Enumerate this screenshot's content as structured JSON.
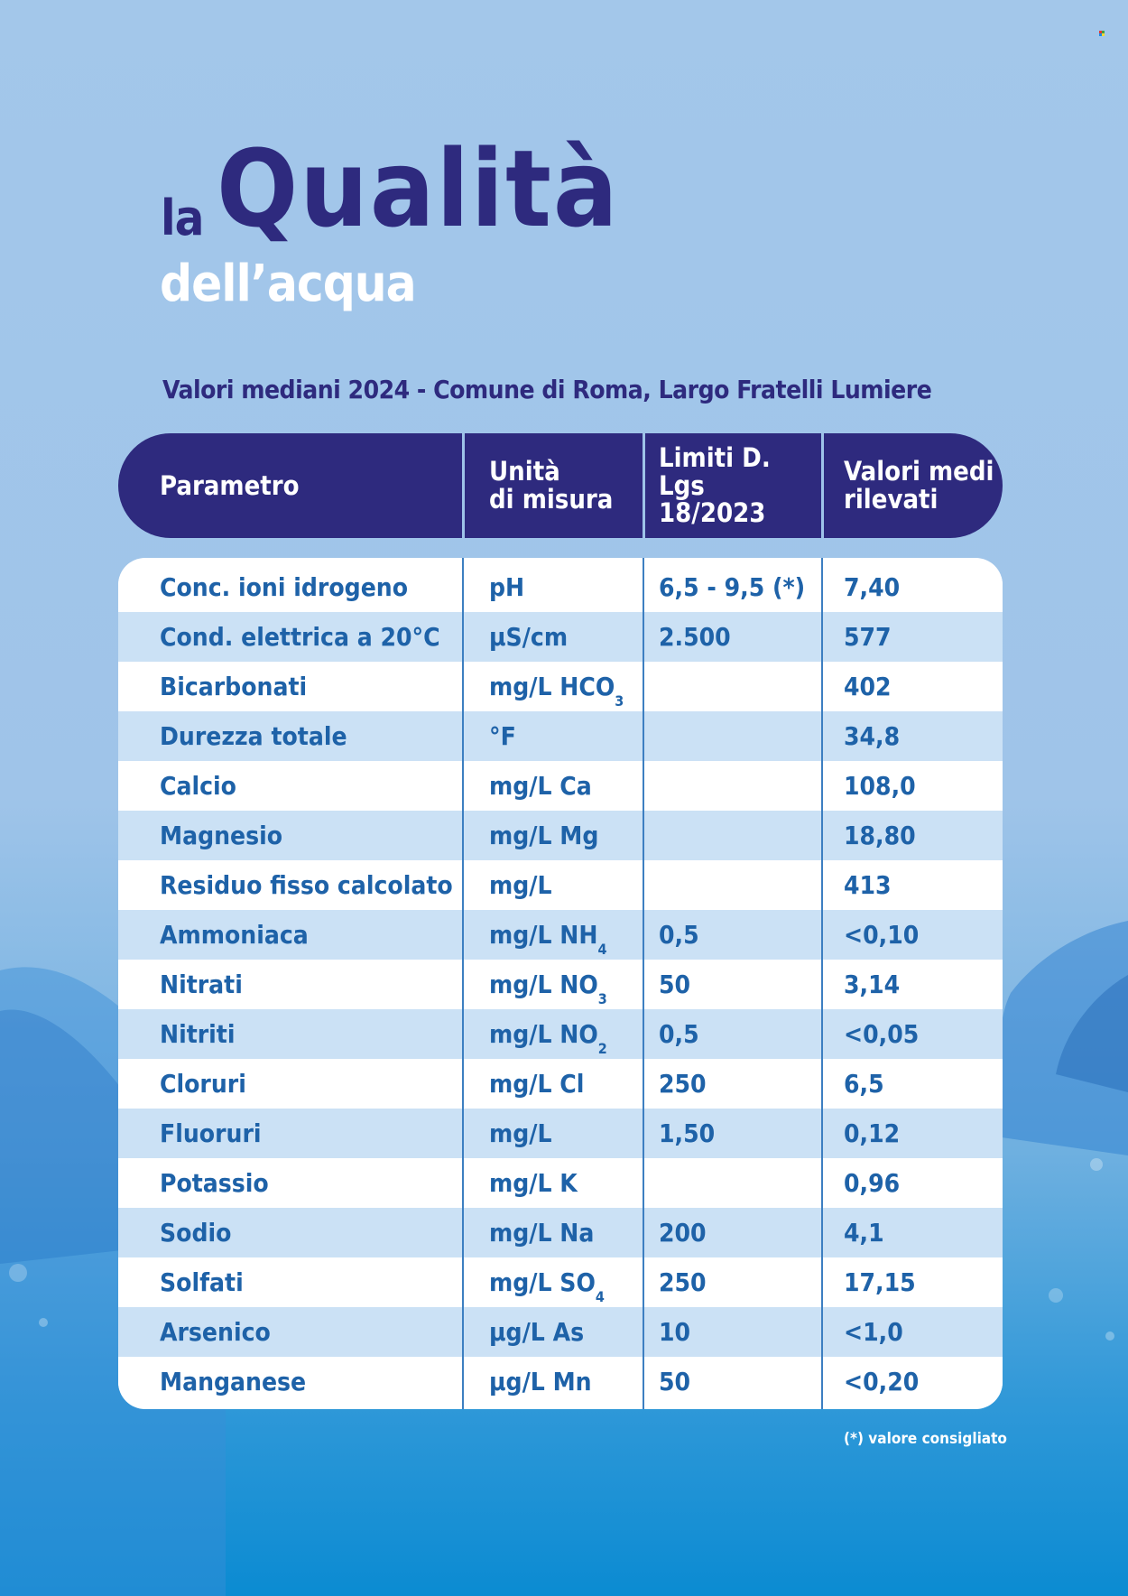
{
  "title": {
    "small": "la",
    "big": "Qualità",
    "subtitle": "dell’acqua"
  },
  "caption": "Valori mediani 2024 - Comune di Roma, Largo Fratelli Lumiere",
  "table": {
    "headers": [
      "Parametro",
      "Unità\ndi misura",
      "Limiti D. Lgs\n18/2023",
      "Valori medi\nrilevati"
    ],
    "rows": [
      {
        "param": "Conc. ioni idrogeno",
        "unit": "pH",
        "unit_sub": "",
        "limit": "6,5 - 9,5 (*)",
        "value": "7,40"
      },
      {
        "param": "Cond. elettrica a 20°C",
        "unit": "µS/cm",
        "unit_sub": "",
        "limit": "2.500",
        "value": "577"
      },
      {
        "param": "Bicarbonati",
        "unit": "mg/L HCO",
        "unit_sub": "3",
        "limit": "",
        "value": "402"
      },
      {
        "param": "Durezza totale",
        "unit": "°F",
        "unit_sub": "",
        "limit": "",
        "value": "34,8"
      },
      {
        "param": "Calcio",
        "unit": "mg/L Ca",
        "unit_sub": "",
        "limit": "",
        "value": "108,0"
      },
      {
        "param": "Magnesio",
        "unit": "mg/L Mg",
        "unit_sub": "",
        "limit": "",
        "value": "18,80"
      },
      {
        "param": "Residuo fisso calcolato",
        "unit": "mg/L",
        "unit_sub": "",
        "limit": "",
        "value": "413"
      },
      {
        "param": "Ammoniaca",
        "unit": "mg/L NH",
        "unit_sub": "4",
        "limit": "0,5",
        "value": "<0,10"
      },
      {
        "param": "Nitrati",
        "unit": "mg/L NO",
        "unit_sub": "3",
        "limit": "50",
        "value": "3,14"
      },
      {
        "param": "Nitriti",
        "unit": "mg/L NO",
        "unit_sub": "2",
        "limit": "0,5",
        "value": "<0,05"
      },
      {
        "param": "Cloruri",
        "unit": "mg/L Cl",
        "unit_sub": "",
        "limit": "250",
        "value": "6,5"
      },
      {
        "param": "Fluoruri",
        "unit": "mg/L",
        "unit_sub": "",
        "limit": "1,50",
        "value": "0,12"
      },
      {
        "param": "Potassio",
        "unit": "mg/L K",
        "unit_sub": "",
        "limit": "",
        "value": "0,96"
      },
      {
        "param": "Sodio",
        "unit": "mg/L Na",
        "unit_sub": "",
        "limit": "200",
        "value": "4,1"
      },
      {
        "param": "Solfati",
        "unit": "mg/L SO",
        "unit_sub": "4",
        "limit": "250",
        "value": "17,15"
      },
      {
        "param": "Arsenico",
        "unit": "µg/L As",
        "unit_sub": "",
        "limit": "10",
        "value": "<1,0"
      },
      {
        "param": "Manganese",
        "unit": "µg/L Mn",
        "unit_sub": "",
        "limit": "50",
        "value": "<0,20"
      }
    ]
  },
  "footnote": "(*) valore consigliato",
  "colors": {
    "navy": "#2e2a7e",
    "row_alt": "#cbe1f5",
    "cell_text": "#1e62a8",
    "bg_top": "#a3c7ea",
    "bg_bottom": "#0b8bd2"
  }
}
